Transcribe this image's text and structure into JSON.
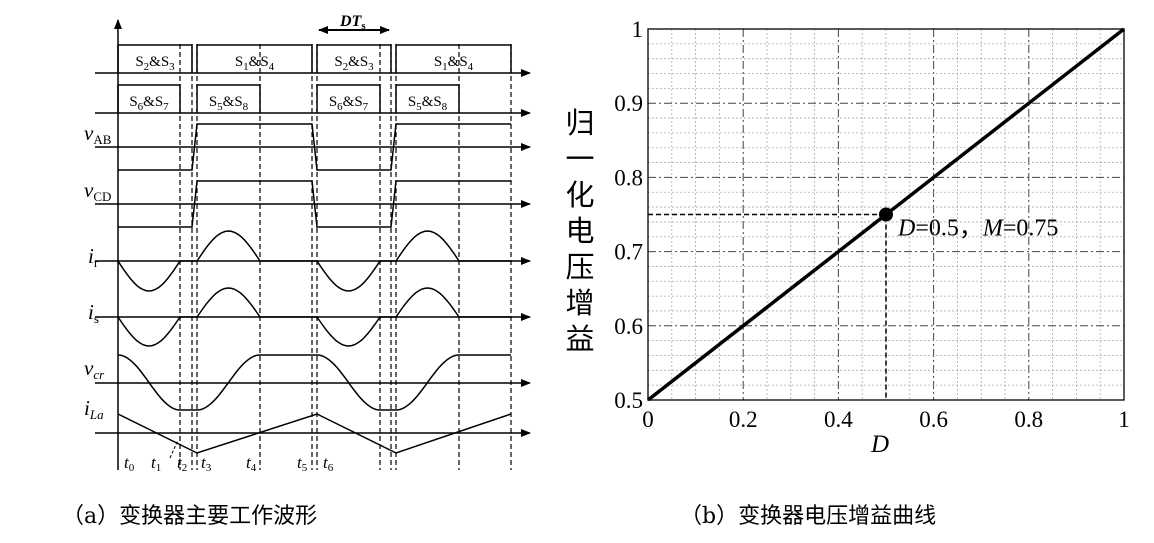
{
  "waveforms": {
    "caption": "（a）变换器主要工作波形",
    "period_label": {
      "main": "DT",
      "sub": "s"
    },
    "row1_labels": [
      {
        "parts": [
          "S",
          "2",
          "&S",
          "3"
        ]
      },
      {
        "parts": [
          "S",
          "1",
          "&S",
          "4"
        ]
      },
      {
        "parts": [
          "S",
          "2",
          "&S",
          "3"
        ]
      },
      {
        "parts": [
          "S",
          "1",
          "&S",
          "4"
        ]
      }
    ],
    "row2_labels": [
      {
        "parts": [
          "S",
          "6",
          "&S",
          "7"
        ]
      },
      {
        "parts": [
          "S",
          "5",
          "&S",
          "8"
        ]
      },
      {
        "parts": [
          "S",
          "6",
          "&S",
          "7"
        ]
      },
      {
        "parts": [
          "S",
          "5",
          "&S",
          "8"
        ]
      }
    ],
    "signals": [
      {
        "main": "v",
        "sub": "AB"
      },
      {
        "main": "v",
        "sub": "CD"
      },
      {
        "main": "i",
        "sub": "r"
      },
      {
        "main": "i",
        "sub": "s"
      },
      {
        "main": "v",
        "sub": "cr"
      },
      {
        "main": "i",
        "sub": "La"
      }
    ],
    "time_labels": [
      {
        "main": "t",
        "sub": "0"
      },
      {
        "main": "t",
        "sub": "1"
      },
      {
        "main": "t",
        "sub": "2"
      },
      {
        "main": "t",
        "sub": "3"
      },
      {
        "main": "t",
        "sub": "4"
      },
      {
        "main": "t",
        "sub": "5"
      },
      {
        "main": "t",
        "sub": "6"
      }
    ]
  },
  "chart_data": {
    "type": "line",
    "caption": "（b）变换器电压增益曲线",
    "xlabel": "D",
    "ylabel": "归一化电压增益",
    "xlim": [
      0,
      1
    ],
    "ylim": [
      0.5,
      1
    ],
    "xticks": [
      "0",
      "0.2",
      "0.4",
      "0.6",
      "0.8",
      "1"
    ],
    "yticks": [
      "0.5",
      "0.6",
      "0.7",
      "0.8",
      "0.9",
      "1"
    ],
    "grid": true,
    "x": [
      0,
      1
    ],
    "y": [
      0.5,
      1
    ],
    "line_color": "#000000",
    "marker": {
      "x": 0.5,
      "y": 0.75
    },
    "annotation": {
      "D_sym": "D",
      "D_val": "=0.5，",
      "M_sym": "M",
      "M_val": "=0.75"
    }
  }
}
